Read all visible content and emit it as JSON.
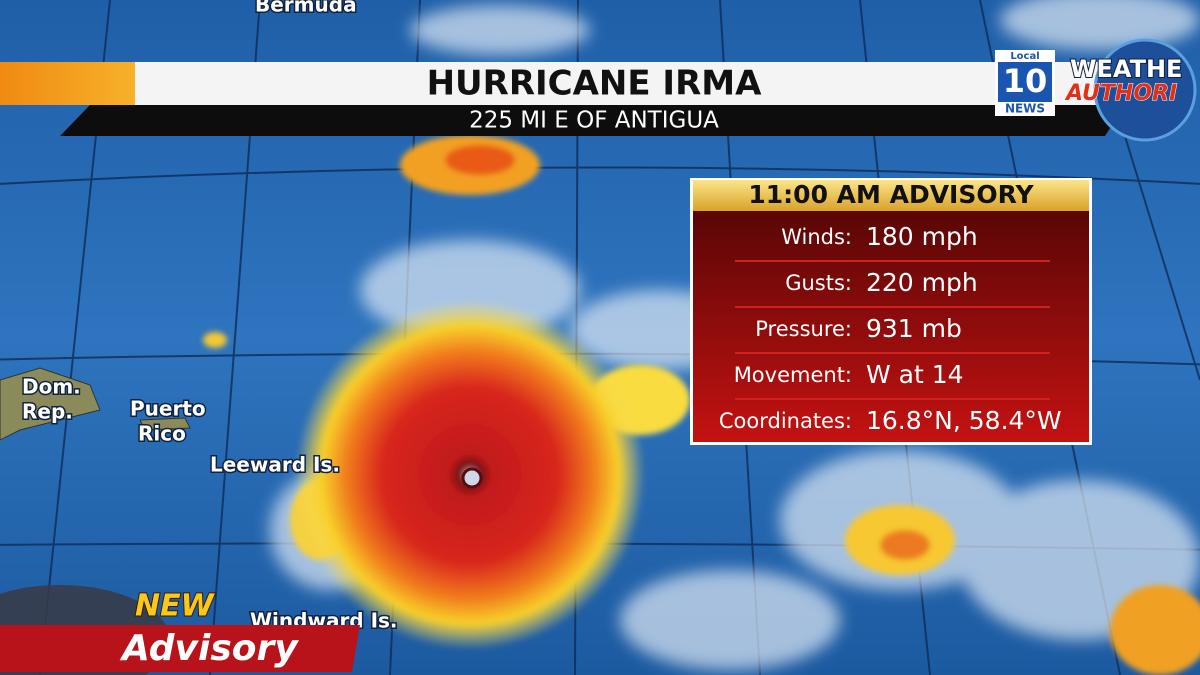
{
  "map_labels": {
    "bermuda": "Bermuda",
    "dom_rep": [
      "Dom.",
      "Rep."
    ],
    "puerto_rico": [
      "Puerto",
      "Rico"
    ],
    "leeward": "Leeward Is.",
    "windward": "Windward Is."
  },
  "banner": {
    "title": "HURRICANE IRMA",
    "subtitle": "225 MI E OF ANTIGUA"
  },
  "logo": {
    "local": "Local",
    "number": "10",
    "news": "NEWS",
    "brand": [
      "WEATHE",
      "AUTHORI"
    ]
  },
  "advisory": {
    "title": "11:00 AM ADVISORY",
    "rows": [
      {
        "label": "Winds:",
        "value": "180 mph"
      },
      {
        "label": "Gusts:",
        "value": "220 mph"
      },
      {
        "label": "Pressure:",
        "value": "931 mb"
      },
      {
        "label": "Movement:",
        "value": "W at 14"
      },
      {
        "label": "Coordinates:",
        "value": "16.8°N, 58.4°W"
      }
    ]
  },
  "lower_third": {
    "new": "NEW",
    "advisory": "Advisory"
  }
}
